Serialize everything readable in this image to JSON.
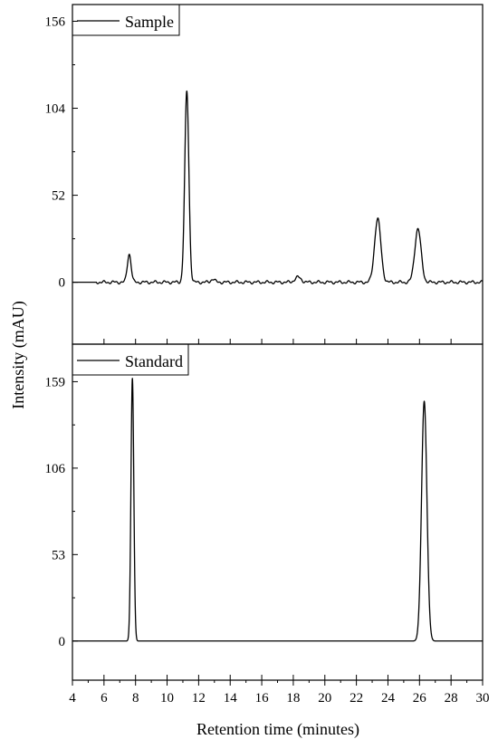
{
  "chart_data": {
    "type": "line",
    "xlabel": "Retention time (minutes)",
    "ylabel": "Intensity (mAU)",
    "xlim": [
      4,
      30
    ],
    "xticks": [
      4,
      6,
      8,
      10,
      12,
      14,
      16,
      18,
      20,
      22,
      24,
      26,
      28,
      30
    ],
    "grid": false,
    "panels": [
      {
        "legend": "Sample",
        "legend_position": "top-left",
        "ylim": [
          -37,
          166
        ],
        "yticks": [
          0,
          52,
          104,
          156
        ],
        "baseline": 0,
        "peaks": [
          {
            "x": 7.6,
            "height": 17,
            "width": 0.12
          },
          {
            "x": 11.25,
            "height": 114,
            "width": 0.13
          },
          {
            "x": 12.9,
            "height": 2,
            "width": 0.12
          },
          {
            "x": 18.3,
            "height": 3,
            "width": 0.2
          },
          {
            "x": 23.35,
            "height": 38,
            "width": 0.2
          },
          {
            "x": 25.9,
            "height": 32,
            "width": 0.2
          }
        ]
      },
      {
        "legend": "Standard",
        "legend_position": "top-left",
        "ylim": [
          -24,
          182
        ],
        "yticks": [
          0,
          53,
          106,
          159
        ],
        "baseline": 0,
        "peaks": [
          {
            "x": 7.8,
            "height": 161,
            "width": 0.09
          },
          {
            "x": 26.3,
            "height": 147,
            "width": 0.17
          }
        ]
      }
    ]
  }
}
